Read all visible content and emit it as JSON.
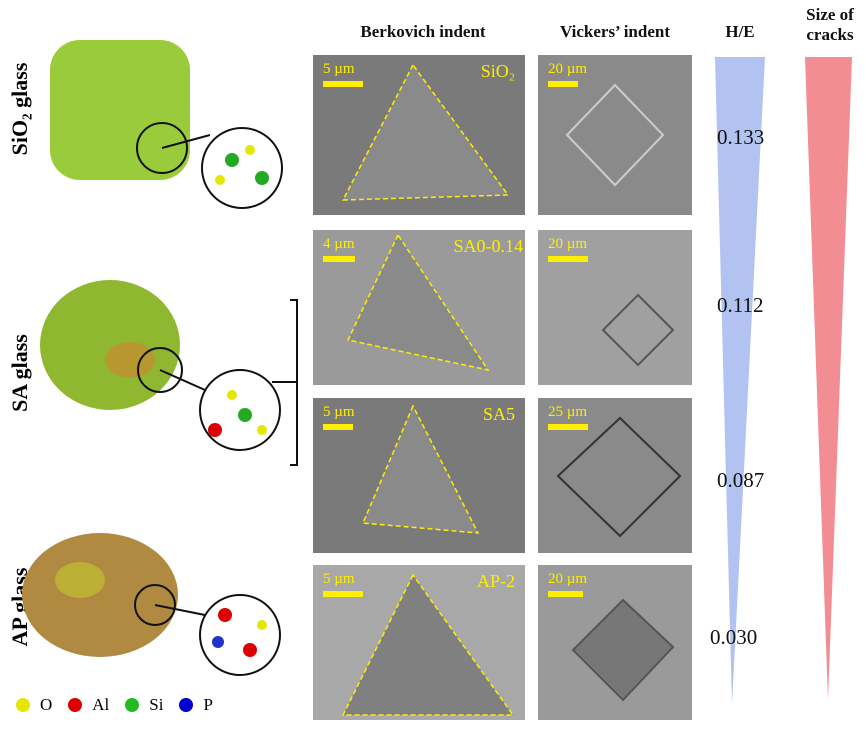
{
  "headers": {
    "berkovich": "Berkovich indent",
    "vickers": "Vickers’ indent",
    "he": "H/E",
    "cracks_line1": "Size of",
    "cracks_line2": "cracks"
  },
  "rows": [
    {
      "glass": "SiO₂ glass",
      "sample": "SiO₂",
      "berk_scale": "5 µm",
      "vick_scale": "20 µm",
      "he": "0.133",
      "blob_color": "#9acb3a"
    },
    {
      "glass": "SA glass",
      "sample": "SA0-0.14",
      "berk_scale": "4 µm",
      "vick_scale": "20 µm",
      "he": "0.112",
      "blob_color": "#8fb830"
    },
    {
      "glass": "",
      "sample": "SA5",
      "berk_scale": "5 µm",
      "vick_scale": "25 µm",
      "he": "0.087"
    },
    {
      "glass": "AP glass",
      "sample": "AP-2",
      "berk_scale": "5 µm",
      "vick_scale": "20 µm",
      "he": "0.030",
      "blob_color": "#b08a40"
    }
  ],
  "legend": [
    {
      "label": "O",
      "color": "#e6e600"
    },
    {
      "label": "Al",
      "color": "#dd0000"
    },
    {
      "label": "Si",
      "color": "#22bb22"
    },
    {
      "label": "P",
      "color": "#0000cc"
    }
  ],
  "colors": {
    "he_wedge": "#9fb3ee",
    "cracks_wedge": "#f07a80",
    "annotation": "#ffee00"
  }
}
